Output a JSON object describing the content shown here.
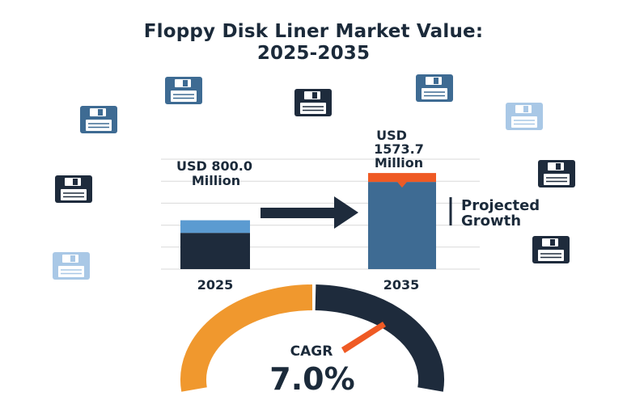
{
  "title_line1": "Floppy Disk Liner Market Value:",
  "title_line2": "2025-2035",
  "colors": {
    "navy": "#1e2b3c",
    "steel_blue": "#3e6b93",
    "light_blue": "#5b9bd1",
    "accent_orange": "#ef5a24",
    "gauge_orange": "#f0982e",
    "gauge_dark": "#1e2b3c",
    "grid": "#d9d9d9"
  },
  "chart_data": {
    "type": "bar",
    "title": "Floppy Disk Liner Market Value: 2025-2035",
    "categories": [
      "2025",
      "2035"
    ],
    "series": [
      {
        "values": [
          800.0,
          1573.7
        ]
      }
    ],
    "unit": "USD Million",
    "data_labels": [
      [
        "USD 800.0",
        "Million"
      ],
      [
        "USD",
        "1573.7",
        "Million"
      ]
    ],
    "annotation": [
      "Projected",
      "Growth"
    ],
    "cagr_label": "CAGR",
    "cagr_value": "7.0%",
    "grid": true,
    "ylim": [
      0,
      1800
    ]
  },
  "icons": [
    "floppy-disk-icon-blue",
    "floppy-disk-icon-navy",
    "floppy-disk-icon-blue",
    "floppy-disk-icon-blue",
    "floppy-disk-icon-light",
    "floppy-disk-icon-navy",
    "floppy-disk-icon-navy",
    "floppy-disk-icon-light",
    "floppy-disk-icon-navy"
  ]
}
